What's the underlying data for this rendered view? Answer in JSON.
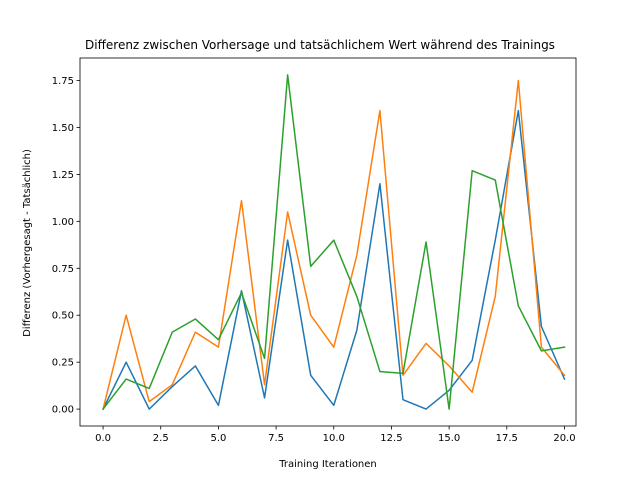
{
  "chart_data": {
    "type": "line",
    "title": "Differenz zwischen Vorhersage und tatsächlichem Wert während des Trainings",
    "xlabel": "Training Iterationen",
    "ylabel": "Differenz (Vorhergesagt - Tatsächlich)",
    "xlim": [
      -1,
      20.5
    ],
    "ylim": [
      -0.09,
      1.87
    ],
    "xticks": [
      0,
      2.5,
      5,
      7.5,
      10,
      12.5,
      15,
      17.5,
      20
    ],
    "xtick_labels": [
      "0.0",
      "2.5",
      "5.0",
      "7.5",
      "10.0",
      "12.5",
      "15.0",
      "17.5",
      "20.0"
    ],
    "yticks": [
      0,
      0.25,
      0.5,
      0.75,
      1.0,
      1.25,
      1.5,
      1.75
    ],
    "ytick_labels": [
      "0.00",
      "0.25",
      "0.50",
      "0.75",
      "1.00",
      "1.25",
      "1.50",
      "1.75"
    ],
    "grid": false,
    "x": [
      0,
      1,
      2,
      3,
      4,
      5,
      6,
      7,
      8,
      9,
      10,
      11,
      12,
      13,
      14,
      15,
      16,
      17,
      18,
      19,
      20
    ],
    "series": [
      {
        "color": "#1f77b4",
        "values": [
          0.0,
          0.25,
          0.0,
          0.12,
          0.23,
          0.02,
          0.63,
          0.06,
          0.9,
          0.18,
          0.02,
          0.42,
          1.2,
          0.05,
          0.0,
          0.1,
          0.26,
          0.9,
          1.59,
          0.44,
          0.16
        ]
      },
      {
        "color": "#ff7f0e",
        "values": [
          0.0,
          0.5,
          0.04,
          0.13,
          0.41,
          0.33,
          1.11,
          0.13,
          1.05,
          0.5,
          0.33,
          0.82,
          1.59,
          0.18,
          0.35,
          0.23,
          0.09,
          0.6,
          1.75,
          0.33,
          0.18
        ]
      },
      {
        "color": "#2ca02c",
        "values": [
          0.0,
          0.16,
          0.11,
          0.41,
          0.48,
          0.37,
          0.62,
          0.27,
          1.78,
          0.76,
          0.9,
          0.6,
          0.2,
          0.19,
          0.89,
          0.0,
          1.27,
          1.22,
          0.55,
          0.31,
          0.33
        ]
      }
    ]
  }
}
